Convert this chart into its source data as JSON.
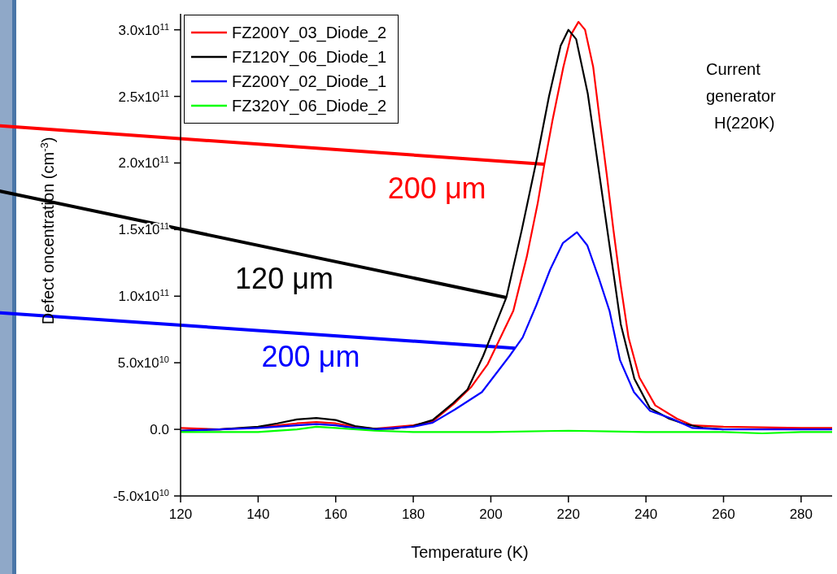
{
  "chart_data": {
    "type": "line",
    "xlabel": "Temperature (K)",
    "ylabel": "Defect oncentration (cm$^{-3}$)",
    "xlim": [
      120,
      288
    ],
    "ylim": [
      -50000000000.0,
      312000000000.0
    ],
    "xticks": [
      120,
      140,
      160,
      180,
      200,
      220,
      240,
      260,
      280
    ],
    "yticks": [
      {
        "value": -50000000000.0,
        "label": "-5.0x10$^{10}$"
      },
      {
        "value": 0,
        "label": "0.0"
      },
      {
        "value": 50000000000.0,
        "label": "5.0x10$^{10}$"
      },
      {
        "value": 100000000000.0,
        "label": "1.0x10$^{11}$"
      },
      {
        "value": 150000000000.0,
        "label": "1.5x10$^{11}$"
      },
      {
        "value": 200000000000.0,
        "label": "2.0x10$^{11}$"
      },
      {
        "value": 250000000000.0,
        "label": "2.5x10$^{11}$"
      },
      {
        "value": 300000000000.0,
        "label": "3.0x10$^{11}$"
      }
    ],
    "grid": false,
    "legend": "top left",
    "marker": "none",
    "line_style": "solid",
    "series": [
      {
        "name": "FZ200Y_03_Diode_2",
        "color": "#ff0000",
        "x": [
          120,
          130,
          140,
          150,
          155,
          160,
          165,
          170,
          180,
          185,
          190.8,
          195,
          199.2,
          205.8,
          209.3,
          212.1,
          213.8,
          215.9,
          218.7,
          220.8,
          222.6,
          224.3,
          226.4,
          228.1,
          229.9,
          231.6,
          233.4,
          235.5,
          238.3,
          242.4,
          248,
          252,
          260,
          270,
          280,
          288
        ],
        "values": [
          1000000000.0,
          0,
          1500000000.0,
          4500000000.0,
          5500000000.0,
          4500000000.0,
          2000000000.0,
          500000000.0,
          3000000000.0,
          6000000000.0,
          20000000000.0,
          32000000000.0,
          49000000000.0,
          89000000000.0,
          130000000000.0,
          170000000000.0,
          199000000000.0,
          232000000000.0,
          272000000000.0,
          297000000000.0,
          306000000000.0,
          300000000000.0,
          272000000000.0,
          232000000000.0,
          191000000000.0,
          150000000000.0,
          110000000000.0,
          69000000000.0,
          39000000000.0,
          18000000000.0,
          8000000000.0,
          3000000000.0,
          2000000000.0,
          1500000000.0,
          1000000000.0,
          1000000000.0
        ]
      },
      {
        "name": "FZ120Y_06_Diode_1",
        "color": "#000000",
        "x": [
          120,
          130,
          140,
          145,
          150,
          155,
          160,
          165,
          170,
          175,
          180,
          185,
          190,
          194,
          198,
          204,
          208,
          212,
          215,
          218,
          220,
          222,
          225,
          228,
          231,
          233.5,
          237,
          241,
          246,
          250,
          255,
          260
        ],
        "values": [
          -1000000000.0,
          0,
          2000000000.0,
          4500000000.0,
          7500000000.0,
          8500000000.0,
          7000000000.0,
          2500000000.0,
          500000000.0,
          500000000.0,
          2500000000.0,
          7000000000.0,
          19000000000.0,
          30000000000.0,
          55000000000.0,
          99000000000.0,
          150000000000.0,
          205000000000.0,
          250000000000.0,
          288000000000.0,
          300000000000.0,
          293000000000.0,
          252000000000.0,
          191000000000.0,
          130000000000.0,
          79000000000.0,
          38000000000.0,
          16000000000.0,
          8000000000.0,
          4000000000.0,
          1000000000.0,
          0
        ]
      },
      {
        "name": "FZ200Y_02_Diode_1",
        "color": "#0000ff",
        "x": [
          120,
          130,
          140,
          150,
          155,
          160,
          165,
          170,
          180,
          185,
          190.8,
          197.7,
          204.8,
          208.2,
          211.7,
          215.3,
          218.6,
          222.2,
          224.9,
          227.9,
          230.6,
          233.3,
          236.9,
          241,
          246.7,
          252,
          260,
          270,
          280,
          288
        ],
        "values": [
          -1000000000.0,
          0,
          1000000000.0,
          3000000000.0,
          4000000000.0,
          3000000000.0,
          1000000000.0,
          0,
          2000000000.0,
          5000000000.0,
          15000000000.0,
          28000000000.0,
          55000000000.0,
          69000000000.0,
          93000000000.0,
          120000000000.0,
          140000000000.0,
          148000000000.0,
          138000000000.0,
          113000000000.0,
          89000000000.0,
          52000000000.0,
          28000000000.0,
          14000000000.0,
          8000000000.0,
          1000000000.0,
          0,
          0,
          0,
          0
        ]
      },
      {
        "name": "FZ320Y_06_Diode_2",
        "color": "#00ff00",
        "x": [
          120,
          140,
          150,
          155,
          160,
          170,
          180,
          200,
          220,
          240,
          260,
          270,
          280,
          288
        ],
        "values": [
          -2000000000.0,
          -2000000000.0,
          0,
          2000000000.0,
          1000000000.0,
          -1000000000.0,
          -2000000000.0,
          -2000000000.0,
          -1000000000.0,
          -2000000000.0,
          -2000000000.0,
          -3000000000.0,
          -2000000000.0,
          -2000000000.0
        ]
      }
    ],
    "annotations": [
      "Current\ngenerator\n H(220K)",
      {
        "text": "200 μm",
        "x": 213.8,
        "y": 199000000000.0
      },
      {
        "text": "120 μm",
        "x": 204,
        "y": 99000000000.0
      },
      {
        "text": "200 μm",
        "x": 206.2,
        "y": 61000000000.0
      }
    ]
  }
}
